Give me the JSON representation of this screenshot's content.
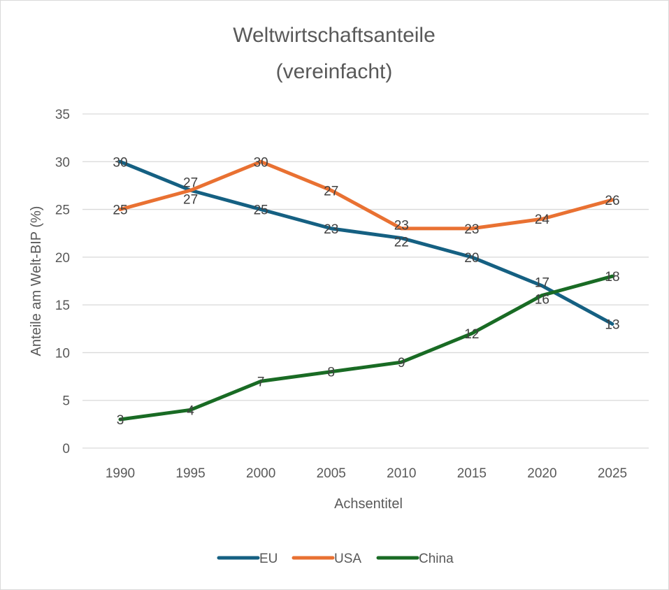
{
  "chart_data": {
    "type": "line",
    "title": [
      "Weltwirtschaftsanteile",
      "(vereinfacht)"
    ],
    "xlabel": "Achsentitel",
    "ylabel": "Anteile am Welt-BIP (%)",
    "categories": [
      "1990",
      "1995",
      "2000",
      "2005",
      "2010",
      "2015",
      "2020",
      "2025"
    ],
    "ylim": [
      0,
      35
    ],
    "yticks": [
      0,
      5,
      10,
      15,
      20,
      25,
      30,
      35
    ],
    "grid": true,
    "legend": "bottom",
    "data_labels": true,
    "series": [
      {
        "name": "EU",
        "color": "#156082",
        "values": [
          30,
          27,
          25,
          23,
          22,
          20,
          17,
          13
        ]
      },
      {
        "name": "USA",
        "color": "#E97132",
        "values": [
          25,
          27,
          30,
          27,
          23,
          23,
          24,
          26
        ]
      },
      {
        "name": "China",
        "color": "#196B24",
        "values": [
          3,
          4,
          7,
          8,
          9,
          12,
          16,
          18
        ]
      }
    ]
  }
}
